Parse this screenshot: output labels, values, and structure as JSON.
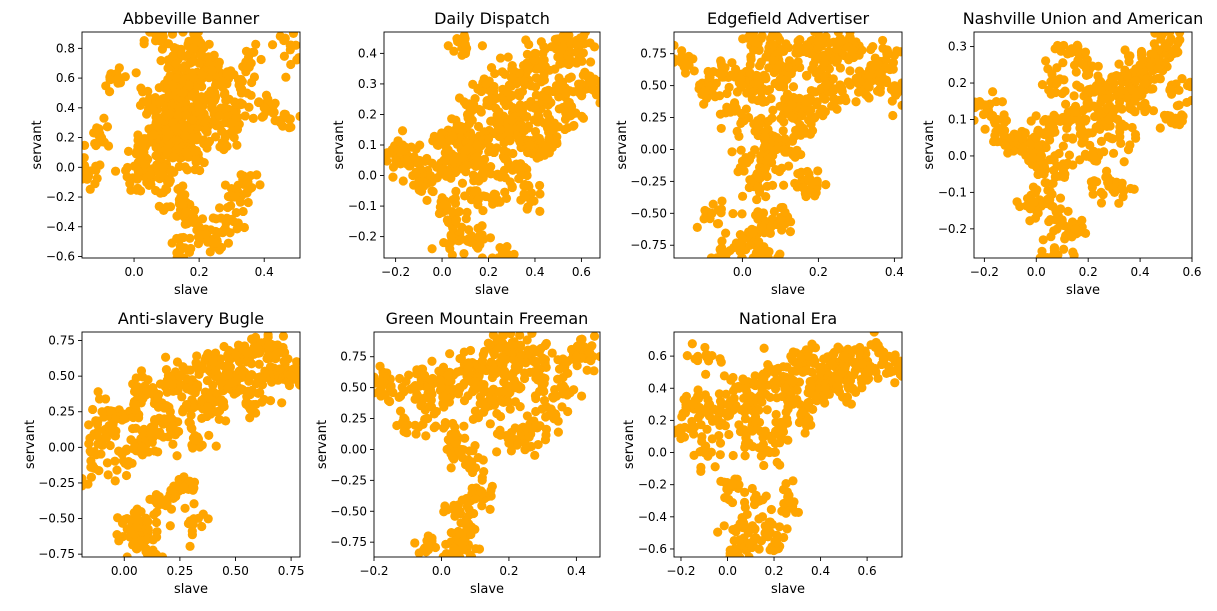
{
  "chart_data": [
    {
      "type": "scatter",
      "title": "Abbeville Banner",
      "xlabel": "slave",
      "ylabel": "servant",
      "xlim": [
        -0.16,
        0.51
      ],
      "ylim": [
        -0.61,
        0.91
      ],
      "xticks": [
        0.0,
        0.2,
        0.4
      ],
      "xtick_labels": [
        "0.0",
        "0.2",
        "0.4"
      ],
      "yticks": [
        -0.6,
        -0.4,
        -0.2,
        0.0,
        0.2,
        0.4,
        0.6,
        0.8
      ],
      "ytick_labels": [
        "−0.6",
        "−0.4",
        "−0.2",
        "0.0",
        "0.2",
        "0.4",
        "0.6",
        "0.8"
      ],
      "point_color": "#FFA500",
      "grid": false,
      "series": [
        {
          "x": [
            0.12,
            0.15,
            0.18,
            0.2,
            0.1,
            0.13,
            0.16,
            0.22,
            0.08,
            0.14,
            0.17,
            0.19,
            0.11,
            0.21,
            0.25,
            0.06,
            0.03,
            0.28,
            0.3,
            0.05,
            0.1,
            0.15,
            0.2,
            0.24,
            0.12,
            0.18,
            0.16,
            0.09,
            0.27,
            0.13,
            -0.14,
            -0.1,
            -0.05,
            0.01,
            0.33,
            0.36,
            0.4,
            0.48,
            0.45,
            0.3,
            0.22,
            0.14,
            0.08,
            0.19,
            0.25,
            0.02,
            0.35,
            0.12,
            0.16,
            0.28,
            0.07,
            0.24,
            0.18,
            0.1,
            0.04,
            0.31,
            0.2,
            0.15,
            0.13,
            0.11
          ],
          "y": [
            0.3,
            0.5,
            0.2,
            0.4,
            0.1,
            0.6,
            0.35,
            0.25,
            0.45,
            0.15,
            0.55,
            0.05,
            0.38,
            0.62,
            0.48,
            0.22,
            0.1,
            0.4,
            0.3,
            -0.05,
            -0.15,
            -0.25,
            0.7,
            0.65,
            0.75,
            0.8,
            -0.3,
            0.0,
            0.58,
            0.18,
            -0.06,
            0.2,
            0.6,
            -0.08,
            0.5,
            0.7,
            0.4,
            0.82,
            0.3,
            -0.35,
            -0.45,
            -0.56,
            0.85,
            0.85,
            -0.51,
            0.05,
            -0.1,
            0.55,
            0.1,
            0.2,
            0.28,
            0.42,
            0.32,
            0.12,
            0.44,
            -0.2,
            -0.4,
            0.67,
            0.26,
            0.36
          ]
        }
      ]
    },
    {
      "type": "scatter",
      "title": "Daily Dispatch",
      "xlabel": "slave",
      "ylabel": "servant",
      "xlim": [
        -0.25,
        0.68
      ],
      "ylim": [
        -0.27,
        0.47
      ],
      "xticks": [
        -0.2,
        0.0,
        0.2,
        0.4,
        0.6
      ],
      "xtick_labels": [
        "−0.2",
        "0.0",
        "0.2",
        "0.4",
        "0.6"
      ],
      "yticks": [
        -0.2,
        -0.1,
        0.0,
        0.1,
        0.2,
        0.3,
        0.4
      ],
      "ytick_labels": [
        "−0.2",
        "−0.1",
        "0.0",
        "0.1",
        "0.2",
        "0.3",
        "0.4"
      ],
      "point_color": "#FFA500",
      "grid": false,
      "series": [
        {
          "x": [
            0.0,
            0.05,
            0.1,
            0.15,
            0.2,
            0.25,
            0.3,
            0.35,
            0.4,
            0.45,
            0.5,
            -0.05,
            -0.1,
            -0.15,
            0.08,
            0.12,
            0.18,
            0.22,
            0.28,
            0.32,
            0.38,
            0.42,
            0.48,
            0.55,
            0.6,
            0.65,
            0.52,
            0.58,
            0.02,
            0.06,
            0.14,
            0.24,
            0.34,
            0.44,
            -0.2,
            -0.18,
            0.1,
            0.2,
            0.3,
            0.4,
            0.16,
            0.26,
            0.36,
            0.46,
            0.56,
            0.04,
            -0.02,
            0.09,
            0.19,
            0.29
          ],
          "y": [
            0.02,
            0.05,
            0.08,
            0.1,
            0.12,
            0.15,
            0.18,
            0.2,
            0.22,
            0.25,
            0.28,
            0.0,
            -0.02,
            0.05,
            0.15,
            0.2,
            0.02,
            0.25,
            0.05,
            0.3,
            0.1,
            0.35,
            0.15,
            0.38,
            0.3,
            0.28,
            0.42,
            0.43,
            -0.1,
            -0.15,
            -0.05,
            -0.08,
            0.0,
            0.08,
            0.05,
            0.08,
            0.43,
            0.24,
            0.32,
            0.4,
            -0.2,
            -0.25,
            -0.07,
            0.12,
            0.2,
            -0.2,
            0.1,
            0.06,
            0.3,
            0.14
          ]
        }
      ]
    },
    {
      "type": "scatter",
      "title": "Edgefield Advertiser",
      "xlabel": "slave",
      "ylabel": "servant",
      "xlim": [
        -0.18,
        0.42
      ],
      "ylim": [
        -0.85,
        0.92
      ],
      "xticks": [
        0.0,
        0.2,
        0.4
      ],
      "xtick_labels": [
        "0.0",
        "0.2",
        "0.4"
      ],
      "yticks": [
        -0.75,
        -0.5,
        -0.25,
        0.0,
        0.25,
        0.5,
        0.75
      ],
      "ytick_labels": [
        "−0.75",
        "−0.50",
        "−0.25",
        "0.00",
        "0.25",
        "0.50",
        "0.75"
      ],
      "point_color": "#FFA500",
      "grid": false,
      "series": [
        {
          "x": [
            0.0,
            0.02,
            0.05,
            0.08,
            0.1,
            0.12,
            0.15,
            0.18,
            0.2,
            0.22,
            0.25,
            0.28,
            0.3,
            0.35,
            0.38,
            -0.02,
            -0.05,
            -0.08,
            0.03,
            0.06,
            0.09,
            0.13,
            0.17,
            0.21,
            0.26,
            0.33,
            -0.16,
            -0.1,
            -0.05,
            -0.08,
            0.0,
            0.02,
            0.05,
            0.07,
            0.04,
            0.1,
            0.16,
            0.18,
            0.01,
            0.06,
            0.11,
            0.14,
            0.19,
            0.24,
            0.29,
            0.36,
            0.4,
            0.08,
            0.12,
            0.03
          ],
          "y": [
            0.5,
            0.6,
            0.45,
            0.7,
            0.55,
            0.65,
            0.4,
            0.75,
            0.6,
            0.5,
            0.7,
            0.8,
            0.55,
            0.65,
            0.75,
            0.3,
            0.6,
            0.5,
            0.2,
            0.1,
            0.0,
            0.35,
            0.82,
            0.85,
            0.85,
            0.5,
            0.68,
            0.45,
            -0.8,
            -0.5,
            -0.7,
            -0.75,
            -0.6,
            -0.8,
            -0.3,
            -0.55,
            -0.3,
            -0.25,
            -0.1,
            -0.15,
            0.0,
            0.15,
            0.25,
            0.4,
            0.78,
            0.6,
            0.45,
            0.82,
            0.3,
            0.85
          ]
        }
      ]
    },
    {
      "type": "scatter",
      "title": "Nashville Union and American",
      "xlabel": "slave",
      "ylabel": "servant",
      "xlim": [
        -0.24,
        0.6
      ],
      "ylim": [
        -0.28,
        0.34
      ],
      "xticks": [
        -0.2,
        0.0,
        0.2,
        0.4,
        0.6
      ],
      "xtick_labels": [
        "−0.2",
        "0.0",
        "0.2",
        "0.4",
        "0.6"
      ],
      "yticks": [
        -0.2,
        -0.1,
        0.0,
        0.1,
        0.2,
        0.3
      ],
      "ytick_labels": [
        "−0.2",
        "−0.1",
        "0.0",
        "0.1",
        "0.2",
        "0.3"
      ],
      "point_color": "#FFA500",
      "grid": false,
      "series": [
        {
          "x": [
            0.0,
            0.05,
            0.1,
            0.15,
            0.2,
            0.25,
            0.3,
            0.35,
            0.4,
            0.45,
            0.5,
            -0.05,
            -0.1,
            -0.15,
            -0.2,
            0.02,
            0.08,
            0.12,
            0.18,
            0.22,
            0.28,
            0.32,
            0.38,
            0.42,
            0.48,
            0.55,
            0.52,
            0.05,
            0.07,
            0.1,
            0.15,
            0.03,
            -0.02,
            0.25,
            0.33,
            0.12,
            0.17,
            0.27,
            0.37,
            0.47
          ],
          "y": [
            0.05,
            0.08,
            0.1,
            0.12,
            0.15,
            0.18,
            0.2,
            0.22,
            0.25,
            0.28,
            0.3,
            0.02,
            0.05,
            0.1,
            0.14,
            0.0,
            0.2,
            -0.02,
            0.25,
            0.0,
            0.1,
            0.05,
            0.15,
            0.2,
            0.32,
            0.18,
            0.1,
            -0.12,
            -0.26,
            -0.19,
            -0.2,
            -0.05,
            -0.14,
            -0.1,
            -0.09,
            0.28,
            0.06,
            0.13,
            0.18,
            0.24
          ]
        }
      ]
    },
    {
      "type": "scatter",
      "title": "Anti-slavery Bugle",
      "xlabel": "slave",
      "ylabel": "servant",
      "xlim": [
        -0.19,
        0.79
      ],
      "ylim": [
        -0.77,
        0.81
      ],
      "xticks": [
        0.0,
        0.25,
        0.5,
        0.75
      ],
      "xtick_labels": [
        "0.00",
        "0.25",
        "0.50",
        "0.75"
      ],
      "yticks": [
        -0.75,
        -0.5,
        -0.25,
        0.0,
        0.25,
        0.5,
        0.75
      ],
      "ytick_labels": [
        "−0.75",
        "−0.50",
        "−0.25",
        "0.00",
        "0.25",
        "0.50",
        "0.75"
      ],
      "point_color": "#FFA500",
      "grid": false,
      "series": [
        {
          "x": [
            0.0,
            0.05,
            0.1,
            0.15,
            0.2,
            0.25,
            0.3,
            0.35,
            0.4,
            0.45,
            0.5,
            0.55,
            0.6,
            0.65,
            0.7,
            -0.05,
            -0.1,
            -0.15,
            -0.12,
            0.02,
            0.08,
            0.12,
            0.18,
            0.22,
            0.28,
            0.32,
            0.38,
            0.42,
            0.48,
            0.52,
            0.58,
            0.62,
            0.68,
            0.75,
            0.03,
            0.06,
            0.09,
            0.13,
            0.17,
            0.21,
            0.27,
            0.31
          ],
          "y": [
            0.2,
            0.3,
            0.4,
            0.35,
            0.45,
            0.5,
            0.4,
            0.55,
            0.6,
            0.5,
            0.65,
            0.6,
            0.7,
            0.72,
            0.55,
            0.1,
            0.25,
            -0.14,
            0.08,
            -0.1,
            0.0,
            0.1,
            0.2,
            0.15,
            0.3,
            0.05,
            0.35,
            0.25,
            0.45,
            0.4,
            0.3,
            0.48,
            0.65,
            0.5,
            -0.6,
            -0.5,
            -0.7,
            -0.65,
            -0.4,
            -0.3,
            -0.28,
            -0.54
          ]
        }
      ]
    },
    {
      "type": "scatter",
      "title": "Green Mountain Freeman",
      "xlabel": "slave",
      "ylabel": "servant",
      "xlim": [
        -0.2,
        0.47
      ],
      "ylim": [
        -0.87,
        0.95
      ],
      "xticks": [
        -0.2,
        0.0,
        0.2,
        0.4
      ],
      "xtick_labels": [
        "−0.2",
        "0.0",
        "0.2",
        "0.4"
      ],
      "yticks": [
        -0.75,
        -0.5,
        -0.25,
        0.0,
        0.25,
        0.5,
        0.75
      ],
      "ytick_labels": [
        "−0.75",
        "−0.50",
        "−0.25",
        "0.00",
        "0.25",
        "0.50",
        "0.75"
      ],
      "point_color": "#FFA500",
      "grid": false,
      "series": [
        {
          "x": [
            0.0,
            0.02,
            0.05,
            0.08,
            0.1,
            0.12,
            0.15,
            0.18,
            0.2,
            0.22,
            0.25,
            0.28,
            0.3,
            0.35,
            0.4,
            0.44,
            -0.02,
            -0.05,
            -0.08,
            -0.1,
            -0.15,
            -0.18,
            0.03,
            0.06,
            0.09,
            0.13,
            0.17,
            0.21,
            0.26,
            0.33,
            0.04,
            0.06,
            0.07,
            0.1,
            -0.04,
            0.05,
            0.12,
            0.2,
            0.28,
            0.36
          ],
          "y": [
            0.5,
            0.6,
            0.45,
            0.7,
            0.55,
            0.65,
            0.4,
            0.75,
            0.6,
            0.5,
            0.7,
            0.8,
            0.55,
            0.65,
            0.75,
            0.78,
            0.3,
            0.6,
            0.5,
            0.2,
            0.5,
            0.55,
            0.1,
            0.0,
            -0.1,
            0.35,
            0.82,
            0.85,
            0.1,
            0.3,
            -0.82,
            -0.75,
            -0.6,
            -0.4,
            -0.78,
            -0.5,
            -0.35,
            0.05,
            0.2,
            0.45
          ]
        }
      ]
    },
    {
      "type": "scatter",
      "title": "National Era",
      "xlabel": "slave",
      "ylabel": "servant",
      "xlim": [
        -0.23,
        0.75
      ],
      "ylim": [
        -0.65,
        0.75
      ],
      "xticks": [
        -0.2,
        0.0,
        0.2,
        0.4,
        0.6
      ],
      "xtick_labels": [
        "−0.2",
        "0.0",
        "0.2",
        "0.4",
        "0.6"
      ],
      "yticks": [
        -0.6,
        -0.4,
        -0.2,
        0.0,
        0.2,
        0.4,
        0.6
      ],
      "ytick_labels": [
        "−0.6",
        "−0.4",
        "−0.2",
        "0.0",
        "0.2",
        "0.4",
        "0.6"
      ],
      "point_color": "#FFA500",
      "grid": false,
      "series": [
        {
          "x": [
            0.0,
            0.05,
            0.1,
            0.15,
            0.2,
            0.25,
            0.3,
            0.35,
            0.4,
            0.45,
            0.5,
            0.55,
            0.6,
            0.65,
            0.7,
            -0.05,
            -0.1,
            -0.15,
            -0.2,
            0.02,
            0.08,
            0.12,
            0.18,
            0.22,
            0.28,
            0.32,
            0.38,
            0.42,
            0.48,
            0.52,
            0.58,
            0.03,
            0.06,
            0.09,
            0.13,
            0.17,
            0.21,
            0.27,
            -0.12,
            -0.08
          ],
          "y": [
            0.3,
            0.4,
            0.35,
            0.45,
            0.5,
            0.4,
            0.55,
            0.6,
            0.5,
            0.55,
            0.6,
            0.55,
            0.5,
            0.62,
            0.5,
            0.2,
            0.0,
            0.3,
            0.12,
            -0.2,
            0.1,
            0.2,
            0.0,
            0.15,
            0.3,
            0.25,
            0.35,
            0.4,
            0.45,
            0.4,
            0.55,
            -0.6,
            -0.45,
            -0.5,
            -0.3,
            -0.47,
            -0.56,
            -0.31,
            0.28,
            0.6
          ]
        }
      ]
    }
  ]
}
